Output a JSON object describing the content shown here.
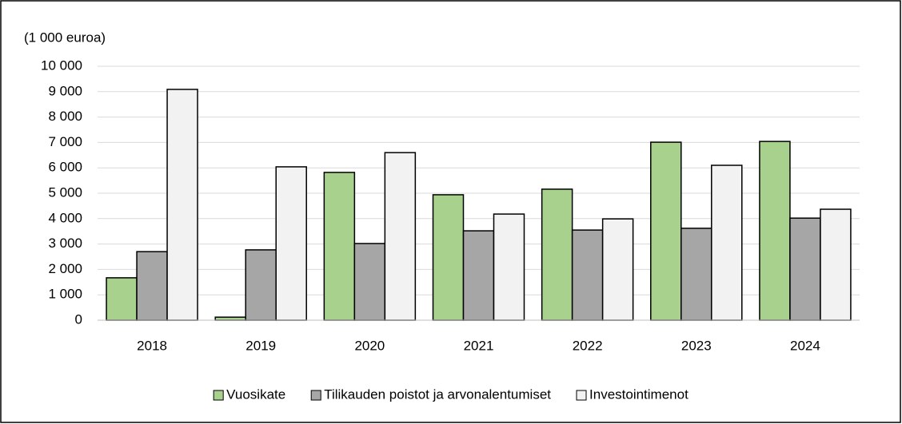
{
  "chart_data": {
    "type": "bar",
    "y_axis_label": "(1 000 euroa)",
    "categories": [
      "2018",
      "2019",
      "2020",
      "2021",
      "2022",
      "2023",
      "2024"
    ],
    "series": [
      {
        "name": "Vuosikate",
        "color": "#a9d18e",
        "values": [
          1670,
          120,
          5820,
          4940,
          5160,
          7010,
          7040
        ]
      },
      {
        "name": "Tilikauden poistot ja arvonalentumiset",
        "color": "#a6a6a6",
        "values": [
          2700,
          2770,
          3020,
          3520,
          3550,
          3620,
          4020
        ]
      },
      {
        "name": "Investointimenot",
        "color": "#f2f2f2",
        "values": [
          9090,
          6040,
          6600,
          4180,
          3990,
          6100,
          4370
        ]
      }
    ],
    "ylim": [
      0,
      10000
    ],
    "yticks": [
      0,
      {
        "value": 1000,
        "label": "1 000"
      },
      {
        "value": 2000,
        "label": "2 000"
      },
      {
        "value": 3000,
        "label": "3 000"
      },
      {
        "value": 4000,
        "label": "4 000"
      },
      {
        "value": 5000,
        "label": "5 000"
      },
      {
        "value": 6000,
        "label": "6 000"
      },
      {
        "value": 7000,
        "label": "7 000"
      },
      {
        "value": 8000,
        "label": "8 000"
      },
      {
        "value": 9000,
        "label": "9 000"
      },
      {
        "value": 10000,
        "label": "10 000"
      }
    ],
    "grid": true,
    "legend": "bottom"
  }
}
